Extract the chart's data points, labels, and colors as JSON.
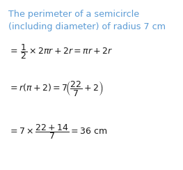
{
  "bg_color": "#ffffff",
  "title_line1": "The perimeter of a semicircle",
  "title_line2": "(including diameter) of radius 7 cm",
  "title_color": "#5b9bd5",
  "math_color": "#1a1a1a",
  "figsize": [
    2.63,
    2.44
  ],
  "dpi": 100
}
